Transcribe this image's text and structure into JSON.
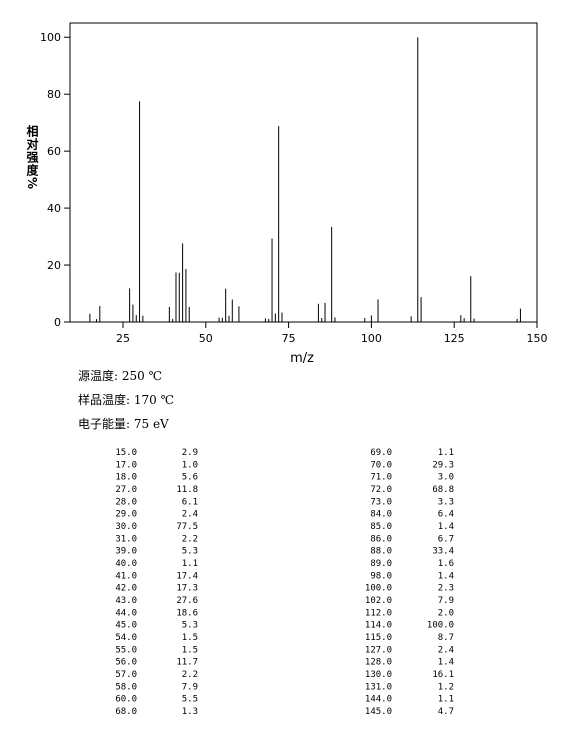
{
  "chart_data": {
    "type": "stick",
    "x_label": "m/z",
    "y_label": "相对强度%",
    "x": [
      15,
      17,
      18,
      27,
      28,
      29,
      30,
      31,
      39,
      40,
      41,
      42,
      43,
      44,
      45,
      54,
      55,
      56,
      57,
      58,
      60,
      68,
      69,
      70,
      71,
      72,
      73,
      84,
      85,
      86,
      88,
      89,
      98,
      100,
      102,
      112,
      114,
      115,
      127,
      128,
      130,
      131,
      144,
      145
    ],
    "values": [
      2.9,
      1.0,
      5.6,
      11.8,
      6.1,
      2.4,
      77.5,
      2.2,
      5.3,
      1.1,
      17.4,
      17.3,
      27.6,
      18.6,
      5.3,
      1.5,
      1.5,
      11.7,
      2.2,
      7.9,
      5.5,
      1.3,
      1.1,
      29.3,
      3.0,
      68.8,
      3.3,
      6.4,
      1.4,
      6.7,
      33.4,
      1.6,
      1.4,
      2.3,
      7.9,
      2.0,
      100.0,
      8.7,
      2.4,
      1.4,
      16.1,
      1.2,
      1.1,
      4.7
    ],
    "color": "#000000",
    "xlim": [
      9,
      150
    ],
    "xticks": [
      25,
      50,
      75,
      100,
      125,
      150
    ],
    "ylim": [
      0,
      105
    ],
    "yticks": [
      0,
      20,
      40,
      60,
      80,
      100
    ]
  },
  "conditions": [
    "源温度: 250 ℃",
    "样品温度: 170 ℃",
    "电子能量: 75 eV"
  ],
  "table": {
    "left": [
      [
        "15.0",
        "2.9"
      ],
      [
        "17.0",
        "1.0"
      ],
      [
        "18.0",
        "5.6"
      ],
      [
        "27.0",
        "11.8"
      ],
      [
        "28.0",
        "6.1"
      ],
      [
        "29.0",
        "2.4"
      ],
      [
        "30.0",
        "77.5"
      ],
      [
        "31.0",
        "2.2"
      ],
      [
        "39.0",
        "5.3"
      ],
      [
        "40.0",
        "1.1"
      ],
      [
        "41.0",
        "17.4"
      ],
      [
        "42.0",
        "17.3"
      ],
      [
        "43.0",
        "27.6"
      ],
      [
        "44.0",
        "18.6"
      ],
      [
        "45.0",
        "5.3"
      ],
      [
        "54.0",
        "1.5"
      ],
      [
        "55.0",
        "1.5"
      ],
      [
        "56.0",
        "11.7"
      ],
      [
        "57.0",
        "2.2"
      ],
      [
        "58.0",
        "7.9"
      ],
      [
        "60.0",
        "5.5"
      ],
      [
        "68.0",
        "1.3"
      ]
    ],
    "right": [
      [
        "69.0",
        "1.1"
      ],
      [
        "70.0",
        "29.3"
      ],
      [
        "71.0",
        "3.0"
      ],
      [
        "72.0",
        "68.8"
      ],
      [
        "73.0",
        "3.3"
      ],
      [
        "84.0",
        "6.4"
      ],
      [
        "85.0",
        "1.4"
      ],
      [
        "86.0",
        "6.7"
      ],
      [
        "88.0",
        "33.4"
      ],
      [
        "89.0",
        "1.6"
      ],
      [
        "98.0",
        "1.4"
      ],
      [
        "100.0",
        "2.3"
      ],
      [
        "102.0",
        "7.9"
      ],
      [
        "112.0",
        "2.0"
      ],
      [
        "114.0",
        "100.0"
      ],
      [
        "115.0",
        "8.7"
      ],
      [
        "127.0",
        "2.4"
      ],
      [
        "128.0",
        "1.4"
      ],
      [
        "130.0",
        "16.1"
      ],
      [
        "131.0",
        "1.2"
      ],
      [
        "144.0",
        "1.1"
      ],
      [
        "145.0",
        "4.7"
      ]
    ]
  }
}
